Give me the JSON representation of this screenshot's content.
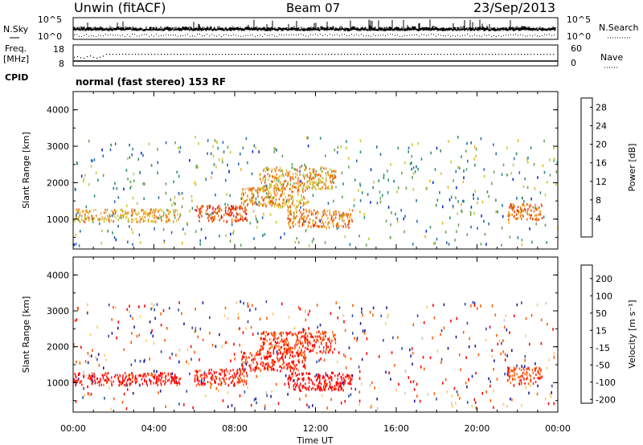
{
  "header": {
    "radar": "Unwin (fitACF)",
    "beam": "Beam 07",
    "date": "23/Sep/2013"
  },
  "status_panel": {
    "left_labels": {
      "nsky": "N.Sky",
      "freq": "Freq.",
      "freq_unit": "[MHz]",
      "cpid": "CPID"
    },
    "right_labels": {
      "nsearch": "N.Search",
      "nave": "Nave"
    },
    "noise_ticks_left": [
      "10^5",
      "10^0"
    ],
    "noise_ticks_right": [
      "10^5",
      "10^0"
    ],
    "freq_ticks": [
      "18",
      "8"
    ],
    "nave_ticks": [
      "60",
      "0"
    ],
    "cpid_text": "normal (fast stereo) 153 RF"
  },
  "colors": {
    "frame": "#000000",
    "power_scale": [
      "#0a2bd8",
      "#2e6bb5",
      "#2f8f74",
      "#6aa35c",
      "#c8c83a",
      "#f2b21a",
      "#f07a0e",
      "#e85a0a",
      "#e2330a",
      "#e01212"
    ],
    "velocity_scale": [
      "#ff0000",
      "#ff5a00",
      "#ff9200",
      "#ffc86a",
      "#c8c8c8",
      "#58c23a",
      "#3a8a5a",
      "#2e4aa8",
      "#1a1aa0"
    ]
  },
  "chart_data": [
    {
      "type": "heatmap",
      "panel": "power",
      "xlabel": "Time UT",
      "ylabel": "Slant Range [km]",
      "x_ticks": [
        "00:00",
        "04:00",
        "08:00",
        "12:00",
        "16:00",
        "20:00",
        "00:00"
      ],
      "xlim_hours": [
        0,
        24
      ],
      "y_ticks": [
        1000,
        2000,
        3000,
        4000
      ],
      "ylim": [
        180,
        4500
      ],
      "colorbar": {
        "label": "Power [dB]",
        "ticks": [
          4,
          8,
          12,
          16,
          20,
          24,
          28
        ],
        "range": [
          0,
          30
        ]
      },
      "echo_regions": [
        {
          "t_start": 0.0,
          "t_end": 5.3,
          "range_low": 950,
          "range_high": 1300,
          "level": 17
        },
        {
          "t_start": 6.0,
          "t_end": 8.6,
          "range_low": 950,
          "range_high": 1400,
          "level": 24
        },
        {
          "t_start": 8.3,
          "t_end": 11.5,
          "range_low": 1350,
          "range_high": 1900,
          "level": 18
        },
        {
          "t_start": 9.2,
          "t_end": 13.0,
          "range_low": 1850,
          "range_high": 2450,
          "level": 17
        },
        {
          "t_start": 10.6,
          "t_end": 13.8,
          "range_low": 800,
          "range_high": 1300,
          "level": 20
        },
        {
          "t_start": 21.5,
          "t_end": 23.2,
          "range_low": 1000,
          "range_high": 1450,
          "level": 21
        }
      ]
    },
    {
      "type": "heatmap",
      "panel": "velocity",
      "xlabel": "Time UT",
      "ylabel": "Slant Range [km]",
      "x_ticks": [
        "00:00",
        "04:00",
        "08:00",
        "12:00",
        "16:00",
        "20:00",
        "00:00"
      ],
      "xlim_hours": [
        0,
        24
      ],
      "y_ticks": [
        1000,
        2000,
        3000,
        4000
      ],
      "ylim": [
        180,
        4500
      ],
      "colorbar": {
        "label": "Velocity [m s⁻¹]",
        "ticks": [
          200,
          100,
          50,
          15,
          -15,
          -50,
          -100,
          -200
        ],
        "range": [
          -250,
          250
        ]
      },
      "echo_regions": [
        {
          "t_start": 0.0,
          "t_end": 5.3,
          "range_low": 950,
          "range_high": 1300,
          "level": -220
        },
        {
          "t_start": 6.0,
          "t_end": 8.6,
          "range_low": 950,
          "range_high": 1400,
          "level": -210
        },
        {
          "t_start": 8.3,
          "t_end": 11.5,
          "range_low": 1350,
          "range_high": 1900,
          "level": -200
        },
        {
          "t_start": 9.2,
          "t_end": 13.0,
          "range_low": 1850,
          "range_high": 2450,
          "level": -190
        },
        {
          "t_start": 10.6,
          "t_end": 13.8,
          "range_low": 800,
          "range_high": 1300,
          "level": -230
        },
        {
          "t_start": 21.5,
          "t_end": 23.2,
          "range_low": 1000,
          "range_high": 1450,
          "level": -180
        }
      ]
    }
  ]
}
